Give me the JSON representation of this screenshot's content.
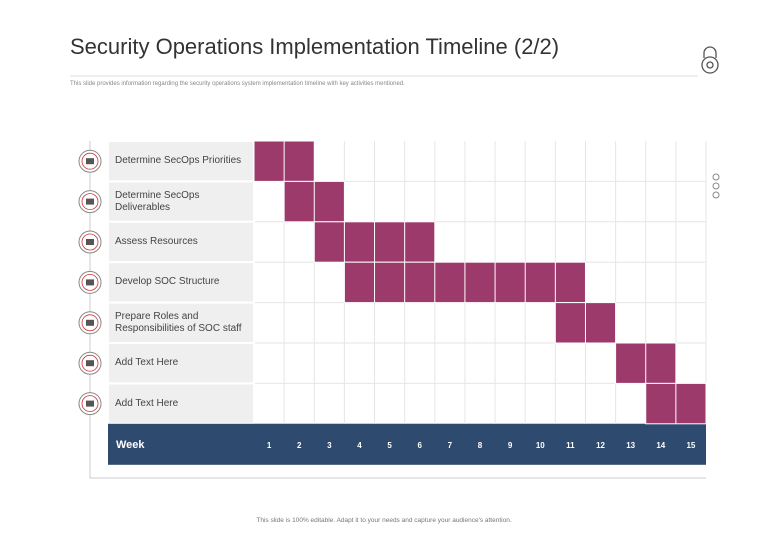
{
  "chart_data": {
    "type": "gantt",
    "title": "Security Operations Implementation Timeline (2/2)",
    "subtitle": "This slide provides information regarding the security operations system implementation timeline  with key activities mentioned.",
    "footer": "This slide is 100% editable. Adapt it to your needs and capture your audience's attention.",
    "categories": [
      "Determine SecOps Priorities",
      "Determine SecOps\nDeliverables",
      "Assess Resources",
      "Develop SOC Structure",
      "Prepare Roles and\nResponsibilities of SOC staff",
      "Add Text Here",
      "Add Text Here"
    ],
    "start": [
      1,
      2,
      3,
      4,
      11,
      13,
      14
    ],
    "end": [
      2,
      3,
      6,
      11,
      12,
      14,
      15
    ],
    "xlabel": "Week",
    "xlim": [
      0.5,
      15.5
    ],
    "xticks": [
      1,
      2,
      3,
      4,
      5,
      6,
      7,
      8,
      9,
      10,
      11,
      12,
      13,
      14,
      15
    ],
    "color": "#9c3a6c"
  }
}
